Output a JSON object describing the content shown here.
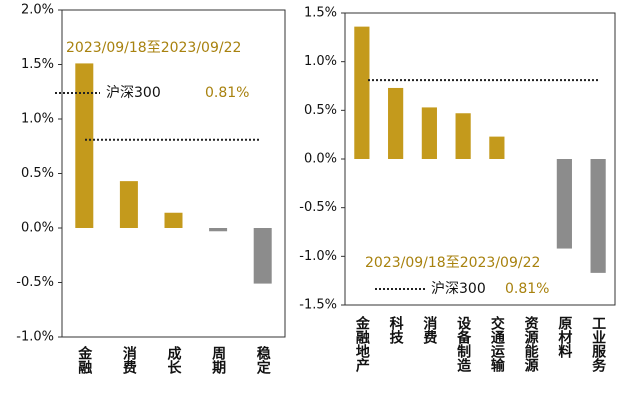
{
  "chart_data": [
    {
      "type": "bar",
      "categories": [
        "金融",
        "消费",
        "成长",
        "周期",
        "稳定"
      ],
      "values": [
        1.51,
        0.43,
        0.14,
        -0.03,
        -0.51
      ],
      "color": "#c49a1c",
      "negative_color": "#8c8c8c",
      "ylim": [
        -1.0,
        2.0
      ],
      "yticks": [
        {
          "value": -1.0,
          "label": "-1.0%"
        },
        {
          "value": -0.5,
          "label": "-0.5%"
        },
        {
          "value": 0.0,
          "label": "0.0%"
        },
        {
          "value": 0.5,
          "label": "0.5%"
        },
        {
          "value": 1.0,
          "label": "1.0%"
        },
        {
          "value": 1.5,
          "label": "1.5%"
        },
        {
          "value": 2.0,
          "label": "2.0%"
        }
      ],
      "annotation": "2023/09/18至2023/09/22",
      "reference": {
        "name": "沪深300",
        "value": 0.81,
        "label": "0.81%"
      }
    },
    {
      "type": "bar",
      "categories": [
        "金融地产",
        "科技",
        "消费",
        "设备制造",
        "交通运输",
        "资源能源",
        "原材料",
        "工业服务"
      ],
      "values": [
        1.36,
        0.73,
        0.53,
        0.47,
        0.23,
        0.0,
        -0.92,
        -1.17
      ],
      "color": "#c49a1c",
      "negative_color": "#8c8c8c",
      "ylim": [
        -1.5,
        1.5
      ],
      "yticks": [
        {
          "value": -1.5,
          "label": "-1.5%"
        },
        {
          "value": -1.0,
          "label": "-1.0%"
        },
        {
          "value": -0.5,
          "label": "-0.5%"
        },
        {
          "value": 0.0,
          "label": "0.0%"
        },
        {
          "value": 0.5,
          "label": "0.5%"
        },
        {
          "value": 1.0,
          "label": "1.0%"
        },
        {
          "value": 1.5,
          "label": "1.5%"
        }
      ],
      "annotation": "2023/09/18至2023/09/22",
      "reference": {
        "name": "沪深300",
        "value": 0.81,
        "label": "0.81%"
      }
    }
  ]
}
